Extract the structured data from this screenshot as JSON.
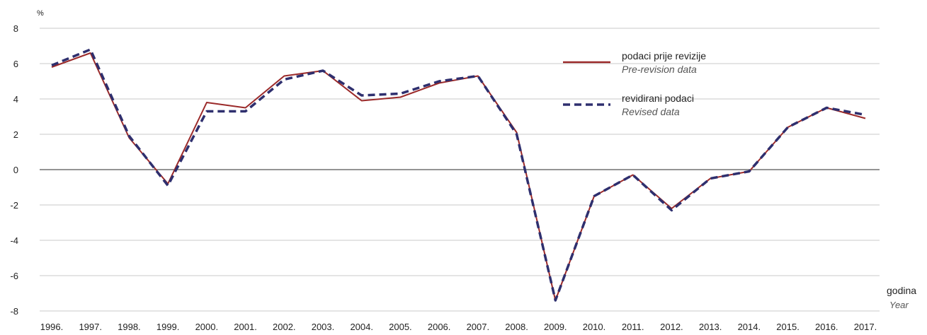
{
  "chart_data": {
    "type": "line",
    "ylabel": "%",
    "xlabel": "godina",
    "xlabel_sub": "Year",
    "ylim": [
      -8,
      8
    ],
    "yticks": [
      "8",
      "6",
      "4",
      "2",
      "0",
      "-2",
      "-4",
      "-6",
      "-8"
    ],
    "ytick_values": [
      8,
      6,
      4,
      2,
      0,
      -2,
      -4,
      -6,
      -8
    ],
    "categories": [
      "1996.",
      "1997.",
      "1998.",
      "1999.",
      "2000.",
      "2001.",
      "2002.",
      "2003.",
      "2004.",
      "2005.",
      "2006.",
      "2007.",
      "2008.",
      "2009.",
      "2010.",
      "2011.",
      "2012.",
      "2013.",
      "2014.",
      "2015.",
      "2016.",
      "2017."
    ],
    "grid": true,
    "legend_position": "top-right",
    "series": [
      {
        "name": "podaci prije revizije",
        "name_sub": "Pre-revision data",
        "color": "#9b2a2a",
        "style": "solid",
        "values": [
          5.8,
          6.6,
          1.8,
          -0.8,
          3.8,
          3.5,
          5.3,
          5.6,
          3.9,
          4.1,
          4.9,
          5.3,
          2.1,
          -7.4,
          -1.5,
          -0.3,
          -2.2,
          -0.5,
          -0.1,
          2.4,
          3.5,
          2.9
        ]
      },
      {
        "name": "revidirani podaci",
        "name_sub": "Revised data",
        "color": "#2e2f6e",
        "style": "dashed",
        "values": [
          5.9,
          6.8,
          1.9,
          -0.9,
          3.3,
          3.3,
          5.1,
          5.6,
          4.2,
          4.3,
          5.0,
          5.3,
          2.0,
          -7.4,
          -1.5,
          -0.3,
          -2.3,
          -0.5,
          -0.1,
          2.4,
          3.5,
          3.1
        ]
      }
    ]
  }
}
